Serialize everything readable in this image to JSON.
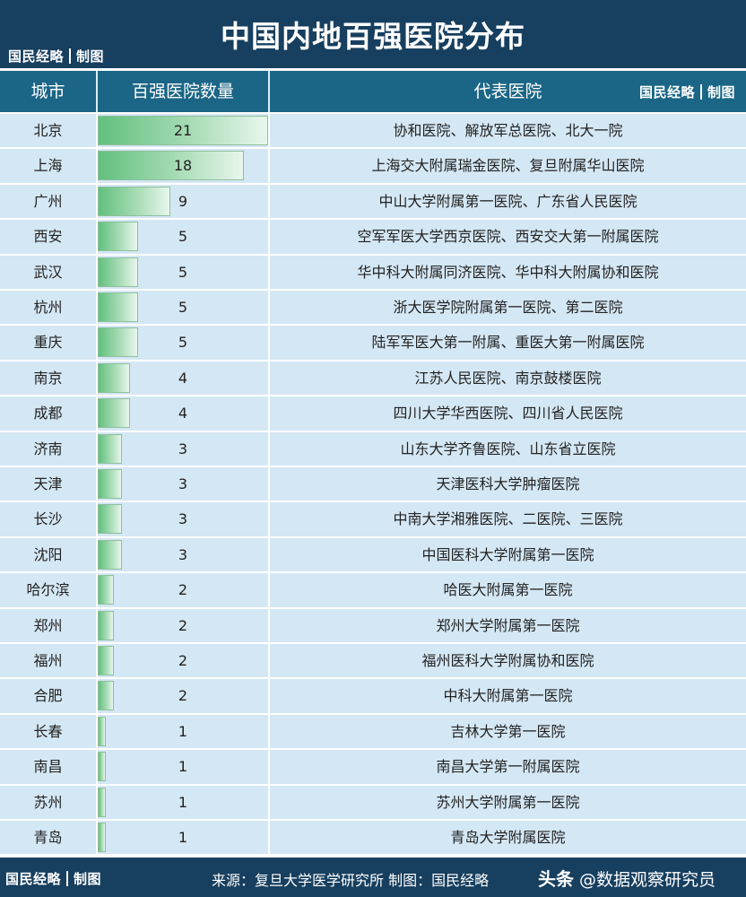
{
  "title": "中国内地百强医院分布",
  "brand": {
    "name": "国民经略",
    "suffix": "制图"
  },
  "headers": {
    "city": "城市",
    "count": "百强医院数量",
    "hospitals": "代表医院"
  },
  "chart_data": {
    "type": "table",
    "title": "中国内地百强医院分布",
    "columns": [
      "城市",
      "百强医院数量",
      "代表医院"
    ],
    "bar_color": "#62c07e",
    "rows": [
      {
        "city": "北京",
        "count": 21,
        "hospitals": "协和医院、解放军总医院、北大一院"
      },
      {
        "city": "上海",
        "count": 18,
        "hospitals": "上海交大附属瑞金医院、复旦附属华山医院"
      },
      {
        "city": "广州",
        "count": 9,
        "hospitals": "中山大学附属第一医院、广东省人民医院"
      },
      {
        "city": "西安",
        "count": 5,
        "hospitals": "空军军医大学西京医院、西安交大第一附属医院"
      },
      {
        "city": "武汉",
        "count": 5,
        "hospitals": "华中科大附属同济医院、华中科大附属协和医院"
      },
      {
        "city": "杭州",
        "count": 5,
        "hospitals": "浙大医学院附属第一医院、第二医院"
      },
      {
        "city": "重庆",
        "count": 5,
        "hospitals": "陆军军医大第一附属、重医大第一附属医院"
      },
      {
        "city": "南京",
        "count": 4,
        "hospitals": "江苏人民医院、南京鼓楼医院"
      },
      {
        "city": "成都",
        "count": 4,
        "hospitals": "四川大学华西医院、四川省人民医院"
      },
      {
        "city": "济南",
        "count": 3,
        "hospitals": "山东大学齐鲁医院、山东省立医院"
      },
      {
        "city": "天津",
        "count": 3,
        "hospitals": "天津医科大学肿瘤医院"
      },
      {
        "city": "长沙",
        "count": 3,
        "hospitals": "中南大学湘雅医院、二医院、三医院"
      },
      {
        "city": "沈阳",
        "count": 3,
        "hospitals": "中国医科大学附属第一医院"
      },
      {
        "city": "哈尔滨",
        "count": 2,
        "hospitals": "哈医大附属第一医院"
      },
      {
        "city": "郑州",
        "count": 2,
        "hospitals": "郑州大学附属第一医院"
      },
      {
        "city": "福州",
        "count": 2,
        "hospitals": "福州医科大学附属协和医院"
      },
      {
        "city": "合肥",
        "count": 2,
        "hospitals": "中科大附属第一医院"
      },
      {
        "city": "长春",
        "count": 1,
        "hospitals": "吉林大学第一医院"
      },
      {
        "city": "南昌",
        "count": 1,
        "hospitals": "南昌大学第一附属医院"
      },
      {
        "city": "苏州",
        "count": 1,
        "hospitals": "苏州大学附属第一医院"
      },
      {
        "city": "青岛",
        "count": 1,
        "hospitals": "青岛大学附属医院"
      }
    ]
  },
  "footer": {
    "source": "来源：复旦大学医学研究所  制图：国民经略",
    "watermark_prefix": "头条",
    "watermark_handle": "@数据观察研究员"
  }
}
